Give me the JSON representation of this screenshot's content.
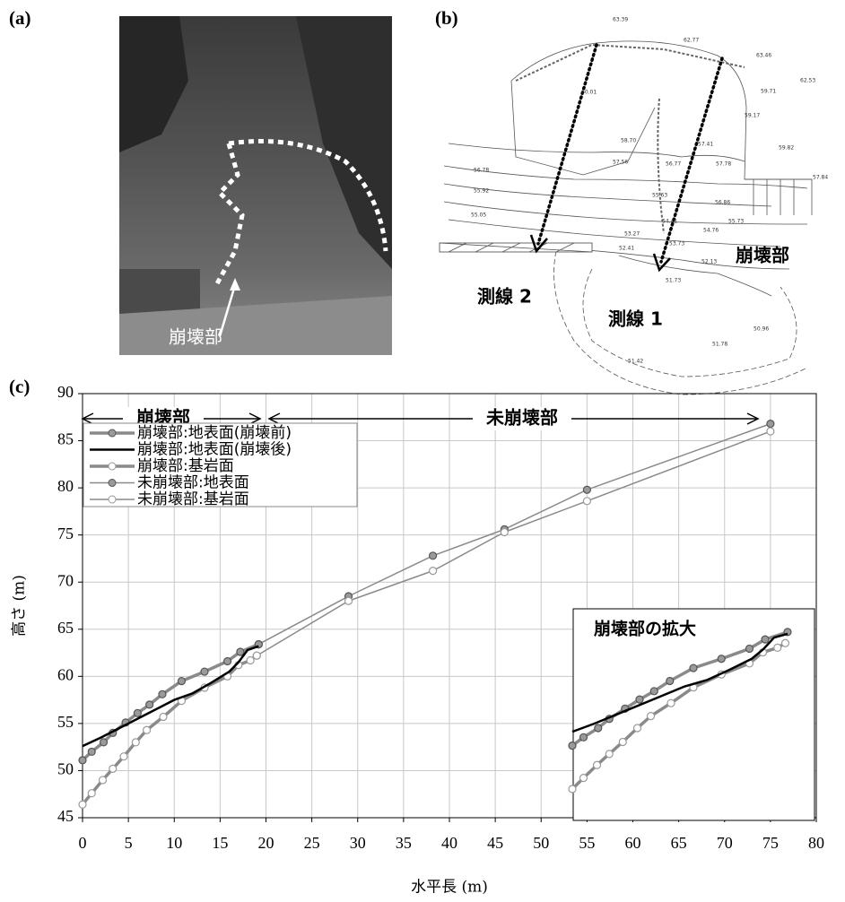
{
  "panels": {
    "a": {
      "label": "(a)",
      "caption": "崩壊部"
    },
    "b": {
      "label": "(b)",
      "line2": "測線 2",
      "line1": "測線 1",
      "collapse": "崩壊部",
      "elevations": [
        "63.39",
        "62.77",
        "63.46",
        "62.53",
        "60.01",
        "59.71",
        "59.17",
        "59.82",
        "57.84",
        "58.70",
        "57.41",
        "57.56",
        "56.77",
        "57.78",
        "56.78",
        "55.92",
        "55.63",
        "56.86",
        "55.05",
        "54.41",
        "55.73",
        "53.27",
        "54.76",
        "52.41",
        "53.73",
        "52.13",
        "51.73",
        "51.78",
        "50.96",
        "51.42"
      ]
    },
    "c": {
      "label": "(c)"
    }
  },
  "chart_data": {
    "type": "line",
    "xlabel": "水平長 (m)",
    "ylabel": "高さ (m)",
    "xlim": [
      0,
      80
    ],
    "xticks": [
      0,
      5,
      10,
      15,
      20,
      25,
      30,
      35,
      40,
      45,
      50,
      55,
      60,
      65,
      70,
      75,
      80
    ],
    "ylim": [
      45,
      90
    ],
    "yticks": [
      45,
      50,
      55,
      60,
      65,
      70,
      75,
      80,
      85,
      90
    ],
    "grid": true,
    "legend": "upper-left",
    "annotations": [
      "崩壊部",
      "未崩壊部"
    ],
    "inset_title": "崩壊部の拡大",
    "series": [
      {
        "name": "崩壊部:地表面(崩壊前)",
        "color": "#8a8a8a",
        "marker": "filled",
        "linewidth": 3.5,
        "x": [
          0,
          1,
          2.3,
          3.3,
          4.7,
          6,
          7.3,
          8.7,
          10.8,
          13.3,
          15.8,
          17.2,
          19.2
        ],
        "values": [
          51.1,
          52,
          53,
          54,
          55.1,
          56.1,
          57,
          58.1,
          59.5,
          60.5,
          61.6,
          62.6,
          63.4
        ]
      },
      {
        "name": "崩壊部:地表面(崩壊後)",
        "color": "#000000",
        "marker": "none",
        "linewidth": 2.5,
        "x": [
          0,
          2,
          5,
          8,
          10,
          12,
          14,
          16,
          17,
          18,
          19.2
        ],
        "values": [
          52.6,
          53.5,
          55,
          56.5,
          57.5,
          58.2,
          59.3,
          60.5,
          61.5,
          62.8,
          63.2
        ]
      },
      {
        "name": "崩壊部:基岩面",
        "color": "#8a8a8a",
        "marker": "open",
        "linewidth": 3.5,
        "x": [
          0,
          1,
          2.2,
          3.3,
          4.5,
          5.8,
          7,
          8.8,
          10.8,
          13.3,
          15.8,
          17,
          18.3,
          19
        ],
        "values": [
          46.4,
          47.6,
          49,
          50.2,
          51.5,
          53,
          54.3,
          55.7,
          57.4,
          58.8,
          60,
          61.2,
          61.7,
          62.2
        ]
      },
      {
        "name": "未崩壊部:地表面",
        "color": "#8a8a8a",
        "marker": "filled",
        "linewidth": 1.5,
        "x": [
          19.2,
          29,
          38.2,
          46,
          55,
          75
        ],
        "values": [
          63.4,
          68.5,
          72.8,
          75.6,
          79.8,
          86.8
        ]
      },
      {
        "name": "未崩壊部:基岩面",
        "color": "#8a8a8a",
        "marker": "open",
        "linewidth": 1.5,
        "x": [
          19,
          29,
          38.2,
          46,
          55,
          75
        ],
        "values": [
          62.2,
          68,
          71.2,
          75.3,
          78.6,
          86
        ]
      }
    ]
  }
}
